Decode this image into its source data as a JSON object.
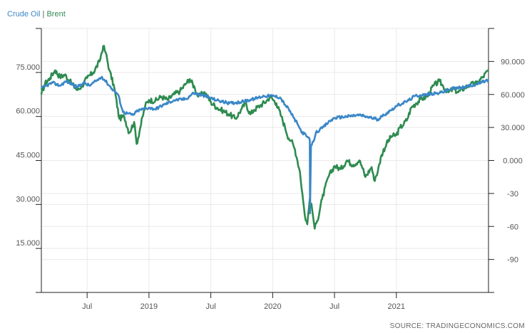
{
  "legend": {
    "series1": "Crude Oil",
    "separator": "|",
    "series2": "Brent"
  },
  "source": "SOURCE: TRADINGECONOMICS.COM",
  "colors": {
    "crude": "#3a87c8",
    "brent": "#2e8b50",
    "grid": "#e9e9e9",
    "axis": "#222222"
  },
  "chart_data": {
    "type": "line",
    "grid": true,
    "x_tick_labels": [
      "Jul",
      "2019",
      "Jul",
      "2020",
      "Jul",
      "2021"
    ],
    "x_tick_dates": [
      2018.5,
      2019.0,
      2019.5,
      2020.0,
      2020.5,
      2021.0
    ],
    "x_range": [
      2018.13,
      2021.745
    ],
    "y_left": {
      "ticks": [
        "75.000",
        "60.000",
        "45.000",
        "30.000",
        "15.000"
      ],
      "tick_values": [
        75,
        60,
        45,
        30,
        15
      ],
      "range": [
        0,
        90
      ]
    },
    "y_right": {
      "ticks": [
        "90.000",
        "60.000",
        "30.000",
        "0.000",
        "-30",
        "-60",
        "-90"
      ],
      "tick_values": [
        90,
        60,
        30,
        0,
        -30,
        -60,
        -90
      ],
      "range": [
        -120,
        120
      ]
    },
    "series": [
      {
        "name": "Crude Oil",
        "axis": "left",
        "x": [
          2018.13,
          2018.17,
          2018.22,
          2018.28,
          2018.33,
          2018.38,
          2018.42,
          2018.47,
          2018.52,
          2018.57,
          2018.62,
          2018.66,
          2018.7,
          2018.75,
          2018.79,
          2018.83,
          2018.87,
          2018.91,
          2018.95,
          2019.0,
          2019.05,
          2019.12,
          2019.2,
          2019.3,
          2019.36,
          2019.45,
          2019.55,
          2019.65,
          2019.75,
          2019.85,
          2019.93,
          2020.0,
          2020.06,
          2020.1,
          2020.13,
          2020.17,
          2020.2,
          2020.23,
          2020.27,
          2020.3,
          2020.302,
          2020.31,
          2020.33,
          2020.35,
          2020.4,
          2020.45,
          2020.5,
          2020.6,
          2020.7,
          2020.8,
          2020.85,
          2020.9,
          2020.95,
          2021.0,
          2021.05,
          2021.1,
          2021.15,
          2021.25,
          2021.35,
          2021.45,
          2021.55,
          2021.65,
          2021.745
        ],
        "values": [
          69.5,
          70.5,
          71.5,
          70.5,
          72.0,
          71.0,
          70.0,
          71.5,
          70.5,
          72.0,
          73.5,
          71.5,
          69.5,
          67.5,
          61.5,
          61.0,
          60.5,
          62.0,
          62.5,
          63.0,
          62.5,
          64.0,
          65.5,
          66.0,
          68.0,
          67.0,
          65.5,
          64.5,
          65.0,
          66.0,
          67.0,
          67.0,
          66.5,
          64.0,
          62.5,
          59.5,
          57.5,
          55.0,
          53.5,
          52.0,
          27.0,
          50.0,
          51.5,
          54.5,
          56.0,
          58.0,
          59.5,
          60.0,
          60.5,
          59.5,
          59.0,
          60.5,
          62.0,
          63.5,
          64.5,
          65.5,
          67.0,
          67.5,
          68.0,
          69.5,
          70.0,
          71.0,
          72.5
        ]
      },
      {
        "name": "Brent",
        "axis": "right",
        "x": [
          2018.13,
          2018.16,
          2018.2,
          2018.24,
          2018.28,
          2018.32,
          2018.36,
          2018.42,
          2018.46,
          2018.5,
          2018.55,
          2018.6,
          2018.63,
          2018.65,
          2018.68,
          2018.72,
          2018.76,
          2018.8,
          2018.84,
          2018.88,
          2018.9,
          2018.93,
          2018.97,
          2019.0,
          2019.05,
          2019.1,
          2019.15,
          2019.2,
          2019.25,
          2019.3,
          2019.33,
          2019.37,
          2019.4,
          2019.45,
          2019.5,
          2019.55,
          2019.6,
          2019.65,
          2019.7,
          2019.75,
          2019.78,
          2019.82,
          2019.85,
          2019.9,
          2019.95,
          2019.98,
          2020.03,
          2020.07,
          2020.1,
          2020.13,
          2020.15,
          2020.18,
          2020.2,
          2020.22,
          2020.24,
          2020.26,
          2020.28,
          2020.3,
          2020.32,
          2020.34,
          2020.36,
          2020.4,
          2020.45,
          2020.5,
          2020.55,
          2020.6,
          2020.65,
          2020.7,
          2020.72,
          2020.75,
          2020.8,
          2020.82,
          2020.85,
          2020.88,
          2020.92,
          2020.96,
          2021.0,
          2021.03,
          2021.06,
          2021.09,
          2021.12,
          2021.16,
          2021.2,
          2021.25,
          2021.3,
          2021.35,
          2021.38,
          2021.42,
          2021.46,
          2021.5,
          2021.55,
          2021.6,
          2021.65,
          2021.7,
          2021.745
        ],
        "values": [
          60.0,
          70.0,
          75.0,
          82.0,
          76.0,
          78.0,
          72.0,
          64.0,
          68.0,
          75.0,
          80.0,
          90.0,
          104.0,
          98.0,
          82.0,
          66.0,
          38.0,
          40.0,
          25.0,
          35.0,
          15.0,
          30.0,
          50.0,
          55.0,
          54.0,
          58.0,
          55.0,
          60.0,
          63.0,
          70.0,
          74.0,
          66.0,
          58.0,
          62.0,
          53.0,
          48.0,
          45.0,
          42.0,
          38.0,
          47.0,
          52.0,
          42.0,
          46.0,
          50.0,
          54.0,
          58.0,
          52.0,
          40.0,
          30.0,
          20.0,
          18.0,
          10.0,
          0.0,
          -10.0,
          -30.0,
          -50.0,
          -58.0,
          -35.0,
          -45.0,
          -62.0,
          -55.0,
          -35.0,
          -15.0,
          -5.0,
          -8.0,
          0.0,
          -4.0,
          0.0,
          -5.0,
          -15.0,
          -6.0,
          -18.0,
          -10.0,
          5.0,
          15.0,
          22.0,
          23.0,
          30.0,
          33.0,
          38.0,
          48.0,
          52.0,
          56.0,
          58.0,
          68.0,
          72.0,
          67.0,
          62.0,
          65.0,
          62.0,
          66.0,
          69.0,
          70.0,
          76.0,
          82.0
        ]
      }
    ]
  }
}
